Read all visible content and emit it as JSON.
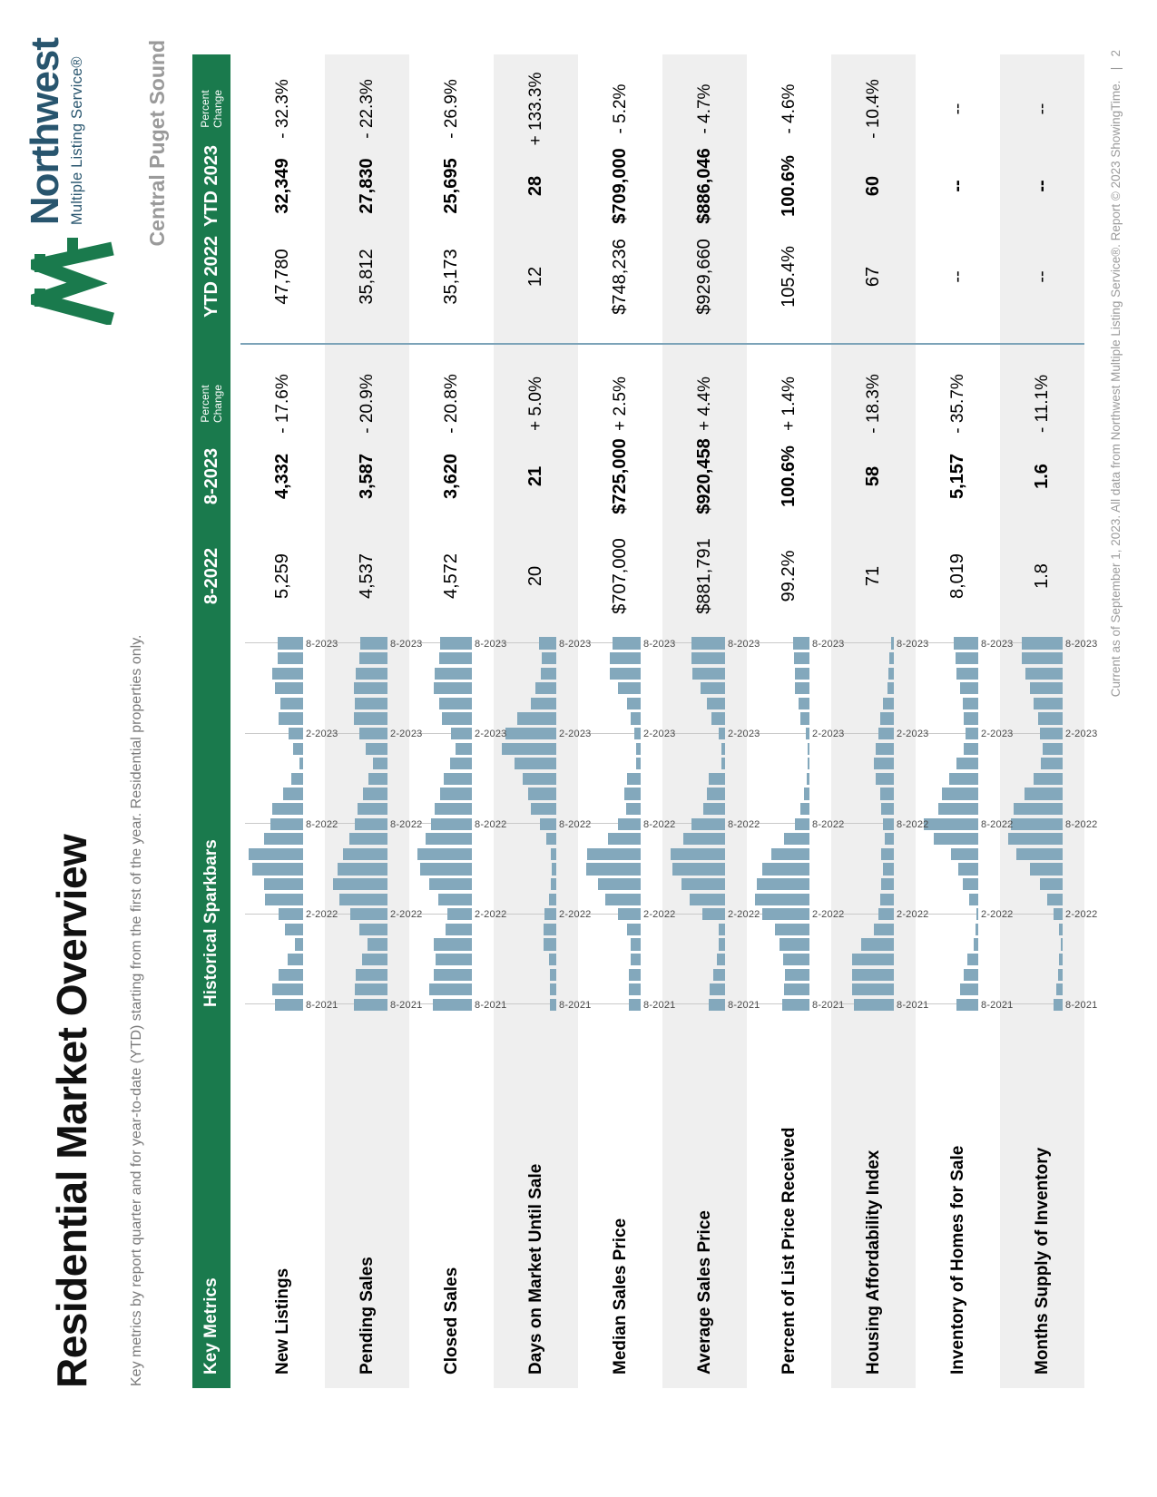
{
  "page": {
    "title": "Residential Market Overview",
    "subtitle": "Key metrics by report quarter and for year-to-date (YTD) starting from the first of the year. Residential properties only.",
    "region": "Central Puget Sound",
    "footer": "Current as of September 1, 2023. All data from Northwest Multiple Listing Service®. Report © 2023 ShowingTime.",
    "footer_separator": "|",
    "page_number": "2"
  },
  "logo": {
    "name": "Northwest",
    "tagline": "Multiple Listing Service®",
    "glyph": "mountain-mark"
  },
  "colors": {
    "brand_green": "#1a7a4d",
    "logo_navy": "#28556e",
    "bar_blue": "#83a8bc",
    "divider_blue": "#7ca3b8",
    "alt_row_gray": "#efefef",
    "muted_gray": "#9a9a9a"
  },
  "table": {
    "columns": {
      "metric": "Key Metrics",
      "sparkbars": "Historical Sparkbars",
      "aug2022": "8-2022",
      "aug2023": "8-2023",
      "pct_line1": "Percent",
      "pct_line2": "Change",
      "ytd2022": "YTD 2022",
      "ytd2023": "YTD 2023",
      "ytd_pct_line1": "Percent",
      "ytd_pct_line2": "Change"
    },
    "spark_axis_labels": [
      "8-2021",
      "2-2022",
      "8-2022",
      "2-2023",
      "8-2023"
    ],
    "spark_gridline_indices": [
      0,
      6,
      12,
      18,
      24
    ],
    "rows": [
      {
        "metric": "New Listings",
        "aug2022": "5,259",
        "aug2023": "4,332",
        "pct_change": "- 17.6%",
        "ytd2022": "47,780",
        "ytd2023": "32,349",
        "ytd_pct_change": "- 32.3%",
        "spark": [
          0.52,
          0.57,
          0.45,
          0.28,
          0.15,
          0.33,
          0.45,
          0.7,
          0.72,
          0.93,
          1.0,
          0.72,
          0.6,
          0.56,
          0.36,
          0.21,
          0.07,
          0.19,
          0.26,
          0.45,
          0.41,
          0.52,
          0.56,
          0.47,
          0.47
        ]
      },
      {
        "metric": "Pending Sales",
        "aug2022": "4,537",
        "aug2023": "3,587",
        "pct_change": "- 20.9%",
        "ytd2022": "35,812",
        "ytd2023": "27,830",
        "ytd_pct_change": "- 22.3%",
        "spark": [
          0.62,
          0.6,
          0.58,
          0.47,
          0.37,
          0.52,
          0.68,
          0.88,
          1.0,
          0.92,
          0.82,
          0.7,
          0.6,
          0.55,
          0.45,
          0.35,
          0.26,
          0.4,
          0.52,
          0.62,
          0.6,
          0.62,
          0.58,
          0.52,
          0.5
        ]
      },
      {
        "metric": "Closed Sales",
        "aug2022": "4,572",
        "aug2023": "3,620",
        "pct_change": "- 20.8%",
        "ytd2022": "35,173",
        "ytd2023": "25,695",
        "ytd_pct_change": "- 26.9%",
        "spark": [
          0.72,
          0.78,
          0.7,
          0.66,
          0.7,
          0.48,
          0.45,
          0.62,
          0.78,
          0.95,
          1.0,
          0.85,
          0.75,
          0.68,
          0.58,
          0.52,
          0.4,
          0.3,
          0.38,
          0.55,
          0.6,
          0.7,
          0.68,
          0.6,
          0.58
        ]
      },
      {
        "metric": "Days on Market Until Sale",
        "aug2022": "20",
        "aug2023": "21",
        "pct_change": "+ 5.0%",
        "ytd2022": "12",
        "ytd2023": "28",
        "ytd_pct_change": "+ 133.3%",
        "spark": [
          0.12,
          0.12,
          0.12,
          0.14,
          0.23,
          0.23,
          0.21,
          0.14,
          0.1,
          0.08,
          0.1,
          0.18,
          0.3,
          0.46,
          0.51,
          0.62,
          0.77,
          1.0,
          0.93,
          0.72,
          0.47,
          0.39,
          0.28,
          0.26,
          0.31
        ]
      },
      {
        "metric": "Median Sales Price",
        "aug2022": "$707,000",
        "aug2023": "$725,000",
        "pct_change": "+ 2.5%",
        "ytd2022": "$748,236",
        "ytd2023": "$709,000",
        "ytd_pct_change": "- 5.2%",
        "spark": [
          0.22,
          0.22,
          0.22,
          0.19,
          0.19,
          0.25,
          0.41,
          0.65,
          0.79,
          1.0,
          0.98,
          0.6,
          0.41,
          0.27,
          0.3,
          0.25,
          0.08,
          0.08,
          0.11,
          0.19,
          0.25,
          0.41,
          0.57,
          0.57,
          0.52
        ]
      },
      {
        "metric": "Average Sales Price",
        "aug2022": "$881,791",
        "aug2023": "$920,458",
        "pct_change": "+ 4.4%",
        "ytd2022": "$929,660",
        "ytd2023": "$886,046",
        "ytd_pct_change": "- 4.7%",
        "spark": [
          0.3,
          0.28,
          0.22,
          0.15,
          0.12,
          0.12,
          0.42,
          0.65,
          0.8,
          0.97,
          1.0,
          0.77,
          0.62,
          0.4,
          0.33,
          0.3,
          0.06,
          0.06,
          0.12,
          0.25,
          0.33,
          0.45,
          0.6,
          0.62,
          0.62
        ]
      },
      {
        "metric": "Percent of List Price Received",
        "aug2022": "99.2%",
        "aug2023": "100.6%",
        "pct_change": "+ 1.4%",
        "ytd2022": "105.4%",
        "ytd2023": "100.6%",
        "ytd_pct_change": "- 4.6%",
        "spark": [
          0.5,
          0.47,
          0.45,
          0.48,
          0.55,
          0.63,
          0.87,
          1.0,
          0.97,
          0.87,
          0.7,
          0.47,
          0.27,
          0.17,
          0.1,
          0.05,
          0.03,
          0.03,
          0.07,
          0.17,
          0.2,
          0.27,
          0.27,
          0.28,
          0.3
        ]
      },
      {
        "metric": "Housing Affordability Index",
        "aug2022": "71",
        "aug2023": "58",
        "pct_change": "- 18.3%",
        "ytd2022": "67",
        "ytd2023": "60",
        "ytd_pct_change": "- 10.4%",
        "spark": [
          0.73,
          0.77,
          0.77,
          0.77,
          0.6,
          0.37,
          0.28,
          0.25,
          0.23,
          0.2,
          0.23,
          0.17,
          0.2,
          0.23,
          0.25,
          0.33,
          0.37,
          0.33,
          0.28,
          0.25,
          0.2,
          0.12,
          0.1,
          0.08,
          0.05
        ]
      },
      {
        "metric": "Inventory of Homes for Sale",
        "aug2022": "8,019",
        "aug2023": "5,157",
        "pct_change": "- 35.7%",
        "ytd2022": "--",
        "ytd2023": "--",
        "ytd_pct_change": "--",
        "spark": [
          0.4,
          0.33,
          0.27,
          0.2,
          0.08,
          0.05,
          0.04,
          0.16,
          0.29,
          0.37,
          0.5,
          0.82,
          1.0,
          0.74,
          0.66,
          0.53,
          0.4,
          0.26,
          0.24,
          0.26,
          0.29,
          0.34,
          0.4,
          0.42,
          0.45
        ]
      },
      {
        "metric": "Months Supply of Inventory",
        "aug2022": "1.8",
        "aug2023": "1.6",
        "pct_change": "- 11.1%",
        "ytd2022": "--",
        "ytd2023": "--",
        "ytd_pct_change": "--",
        "spark": [
          0.17,
          0.11,
          0.08,
          0.06,
          0.04,
          0.06,
          0.17,
          0.28,
          0.42,
          0.6,
          0.85,
          1.0,
          0.95,
          0.9,
          0.7,
          0.53,
          0.4,
          0.37,
          0.42,
          0.45,
          0.53,
          0.6,
          0.68,
          0.75,
          0.75
        ]
      }
    ]
  }
}
